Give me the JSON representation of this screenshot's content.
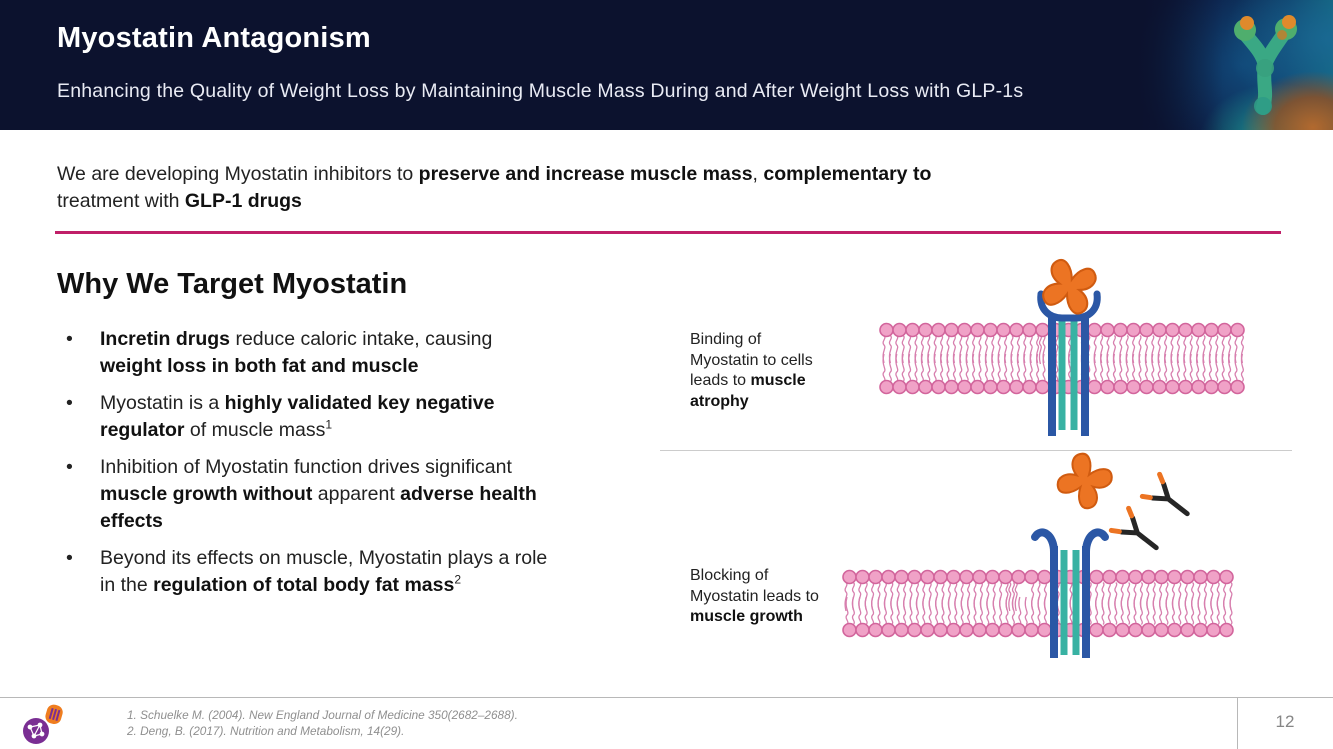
{
  "header": {
    "title": "Myostatin Antagonism",
    "subtitle": "Enhancing the Quality of Weight Loss by Maintaining Muscle Mass During and After Weight Loss with GLP-1s"
  },
  "intro": {
    "segments": [
      {
        "t": "We are developing Myostatin inhibitors to "
      },
      {
        "t": "preserve and increase muscle mass",
        "b": true
      },
      {
        "t": ", "
      },
      {
        "t": "complementary to",
        "b": true
      },
      {
        "t": " treatment with "
      },
      {
        "t": "GLP-1 drugs",
        "b": true
      }
    ]
  },
  "left": {
    "heading": "Why We Target Myostatin",
    "bullets": [
      {
        "segments": [
          {
            "t": "Incretin drugs",
            "b": true
          },
          {
            "t": " reduce caloric intake, causing "
          },
          {
            "t": "weight loss in both fat and muscle",
            "b": true
          }
        ]
      },
      {
        "segments": [
          {
            "t": "Myostatin is a "
          },
          {
            "t": "highly validated key negative regulator",
            "b": true
          },
          {
            "t": " of muscle mass"
          },
          {
            "t": "1",
            "sup": true
          }
        ]
      },
      {
        "segments": [
          {
            "t": "Inhibition of Myostatin function drives significant "
          },
          {
            "t": "muscle growth without",
            "b": true
          },
          {
            "t": " apparent "
          },
          {
            "t": "adverse health effects",
            "b": true
          }
        ]
      },
      {
        "segments": [
          {
            "t": "Beyond its effects on muscle, Myostatin plays a role in the "
          },
          {
            "t": "regulation of total body fat mass",
            "b": true
          },
          {
            "t": "2",
            "sup": true
          }
        ]
      }
    ]
  },
  "diagrams": {
    "atrophy": {
      "segments": [
        {
          "t": "Binding of Myostatin to cells leads to "
        },
        {
          "t": "muscle atrophy",
          "b": true
        }
      ]
    },
    "growth": {
      "segments": [
        {
          "t": "Blocking of Myostatin leads to "
        },
        {
          "t": "muscle growth",
          "b": true
        }
      ]
    }
  },
  "icons": {
    "myostatin": "orange four-lobed myostatin molecule",
    "receptor": "blue-teal transmembrane receptor",
    "antibody": "black Y antibody with orange tips",
    "membrane": "pink lipid bilayer cell membrane",
    "header_image": "3d antibody on cell surface",
    "logo": "orange and purple company logo"
  },
  "colors": {
    "navy": "#0c122e",
    "accent": "#c01f68",
    "membrane_pink": "#f0a2c7",
    "receptor_blue": "#2b57a5",
    "receptor_teal": "#38b2a3",
    "myostatin_orange": "#ec7423"
  },
  "footer": {
    "references": [
      "1. Schuelke M. (2004). New England Journal of Medicine 350(2682–2688).",
      "2. Deng, B. (2017). Nutrition and Metabolism, 14(29)."
    ],
    "page_number": "12"
  }
}
